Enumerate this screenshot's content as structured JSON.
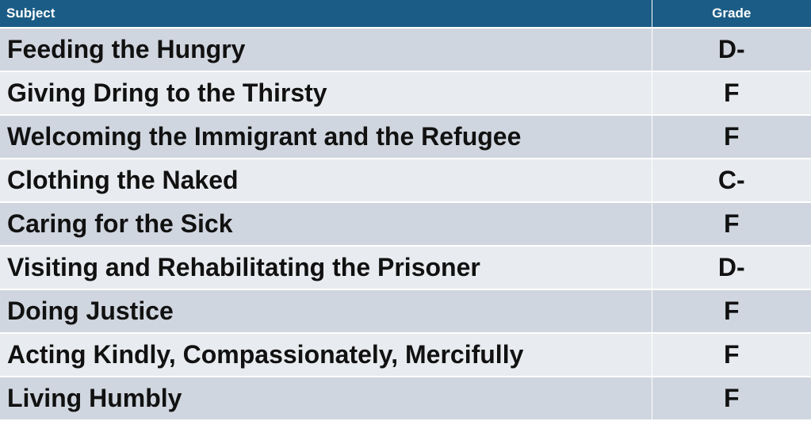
{
  "table": {
    "headers": {
      "subject": "Subject",
      "grade": "Grade"
    },
    "rows": [
      {
        "subject": "Feeding the Hungry",
        "grade": "D-"
      },
      {
        "subject": "Giving Dring to the Thirsty",
        "grade": "F"
      },
      {
        "subject": "Welcoming the Immigrant and the Refugee",
        "grade": "F"
      },
      {
        "subject": "Clothing the Naked",
        "grade": "C-"
      },
      {
        "subject": "Caring for the Sick",
        "grade": "F"
      },
      {
        "subject": "Visiting and Rehabilitating the Prisoner",
        "grade": "D-"
      },
      {
        "subject": "Doing Justice",
        "grade": "F"
      },
      {
        "subject": "Acting Kindly, Compassionately, Mercifully",
        "grade": "F"
      },
      {
        "subject": "Living Humbly",
        "grade": "F"
      }
    ]
  },
  "colors": {
    "header_bg": "#1a5c85",
    "row_band_dark": "#d0d6df",
    "row_band_light": "#e8ebef"
  }
}
